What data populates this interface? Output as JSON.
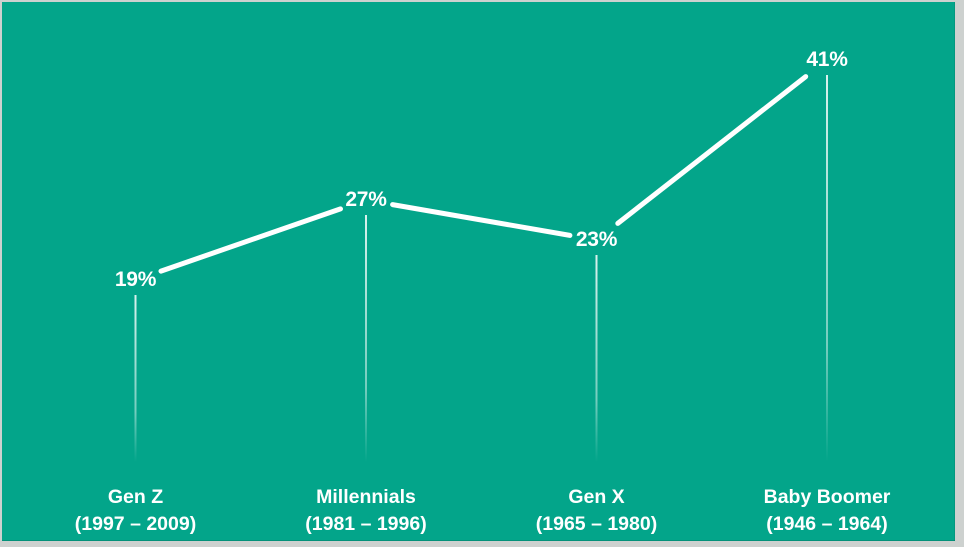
{
  "frame": {
    "border_color": "#CDD1CF"
  },
  "chart_data": {
    "type": "line",
    "title": "",
    "xlabel": "",
    "ylabel": "",
    "categories": [
      "Gen Z",
      "Millennials",
      "Gen X",
      "Baby Boomer"
    ],
    "category_ranges": [
      "(1997 – 2009)",
      "(1981 – 1996)",
      "(1965 – 1980)",
      "(1946 – 1964)"
    ],
    "values": [
      19,
      27,
      23,
      41
    ],
    "value_labels": [
      "19%",
      "27%",
      "23%",
      "41%"
    ],
    "ylim": [
      0,
      45
    ],
    "grid": false,
    "legend": "none",
    "layout_hints": "single white polyline with label gaps at vertices; thin fading drop-lines from each point to baseline; category + year-range labels along bottom",
    "colors": {
      "background": "#03A58A",
      "line": "#FFFFFF",
      "text": "#FFFFFF"
    }
  }
}
